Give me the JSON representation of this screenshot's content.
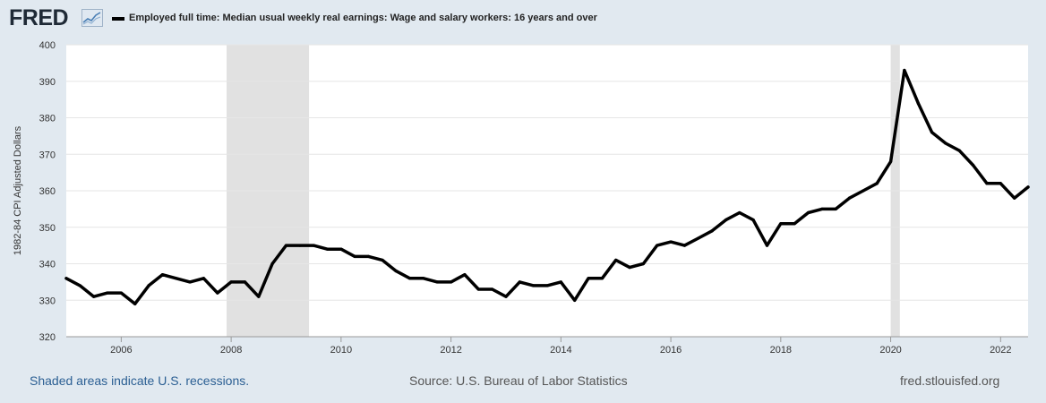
{
  "header": {
    "logo_text": "FRED",
    "logo_icon": "line-graph-icon",
    "legend_label": "Employed full time: Median usual weekly real earnings: Wage and salary workers: 16 years and over"
  },
  "footer": {
    "recession_note": "Shaded areas indicate U.S. recessions.",
    "source": "Source: U.S. Bureau of Labor Statistics",
    "site": "fred.stlouisfed.org"
  },
  "colors": {
    "background": "#e1e9f0",
    "plot_background": "#ffffff",
    "series": "#000000",
    "recession_shade": "#e1e1e1",
    "grid": "#e6e6e6",
    "link": "#2b5f93"
  },
  "chart_data": {
    "type": "line",
    "title": "",
    "xlabel": "",
    "ylabel": "1982-84 CPI Adjusted Dollars",
    "xlim": [
      2005.0,
      2022.5
    ],
    "ylim": [
      320,
      400
    ],
    "y_ticks": [
      320,
      330,
      340,
      350,
      360,
      370,
      380,
      390,
      400
    ],
    "x_ticks": [
      2006,
      2008,
      2010,
      2012,
      2014,
      2016,
      2018,
      2020,
      2022
    ],
    "grid": true,
    "recessions": [
      [
        2007.917,
        2009.417
      ],
      [
        2020.0,
        2020.167
      ]
    ],
    "series": [
      {
        "name": "Employed full time: Median usual weekly real earnings: Wage and salary workers: 16 years and over",
        "x": [
          2005.0,
          2005.25,
          2005.5,
          2005.75,
          2006.0,
          2006.25,
          2006.5,
          2006.75,
          2007.0,
          2007.25,
          2007.5,
          2007.75,
          2008.0,
          2008.25,
          2008.5,
          2008.75,
          2009.0,
          2009.25,
          2009.5,
          2009.75,
          2010.0,
          2010.25,
          2010.5,
          2010.75,
          2011.0,
          2011.25,
          2011.5,
          2011.75,
          2012.0,
          2012.25,
          2012.5,
          2012.75,
          2013.0,
          2013.25,
          2013.5,
          2013.75,
          2014.0,
          2014.25,
          2014.5,
          2014.75,
          2015.0,
          2015.25,
          2015.5,
          2015.75,
          2016.0,
          2016.25,
          2016.5,
          2016.75,
          2017.0,
          2017.25,
          2017.5,
          2017.75,
          2018.0,
          2018.25,
          2018.5,
          2018.75,
          2019.0,
          2019.25,
          2019.5,
          2019.75,
          2020.0,
          2020.25,
          2020.5,
          2020.75,
          2021.0,
          2021.25,
          2021.5,
          2021.75,
          2022.0,
          2022.25,
          2022.5
        ],
        "values": [
          336,
          334,
          331,
          332,
          332,
          329,
          334,
          337,
          336,
          335,
          336,
          332,
          335,
          335,
          331,
          340,
          345,
          345,
          345,
          344,
          344,
          342,
          342,
          341,
          338,
          336,
          336,
          335,
          335,
          337,
          333,
          333,
          331,
          335,
          334,
          334,
          335,
          330,
          336,
          336,
          341,
          339,
          340,
          345,
          346,
          345,
          347,
          349,
          352,
          354,
          352,
          345,
          351,
          351,
          354,
          355,
          355,
          358,
          360,
          362,
          368,
          393,
          384,
          376,
          373,
          371,
          367,
          362,
          362,
          358,
          361
        ]
      }
    ]
  }
}
